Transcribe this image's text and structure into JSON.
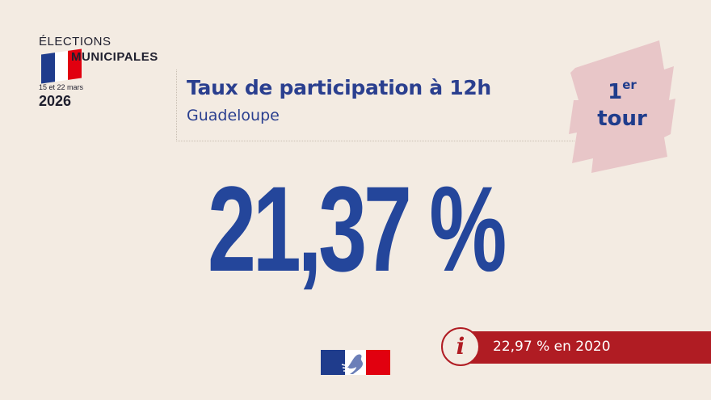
{
  "logo": {
    "line1": "ÉLECTIONS",
    "line2": "MUNICIPALES",
    "dates": "15 et 22 mars",
    "year": "2026"
  },
  "header": {
    "title": "Taux de participation à 12h",
    "subtitle": "Guadeloupe"
  },
  "badge": {
    "round_number": "1",
    "round_suffix": "er",
    "round_word": "tour"
  },
  "main": {
    "participation_rate": "21,37 %"
  },
  "info": {
    "icon": "info-icon",
    "glyph": "i",
    "text": "22,97 % en 2020"
  },
  "colors": {
    "background": "#f3ebe2",
    "primary_blue": "#24469b",
    "accent_red": "#b01c23",
    "badge_pink": "#e8c6c8"
  }
}
